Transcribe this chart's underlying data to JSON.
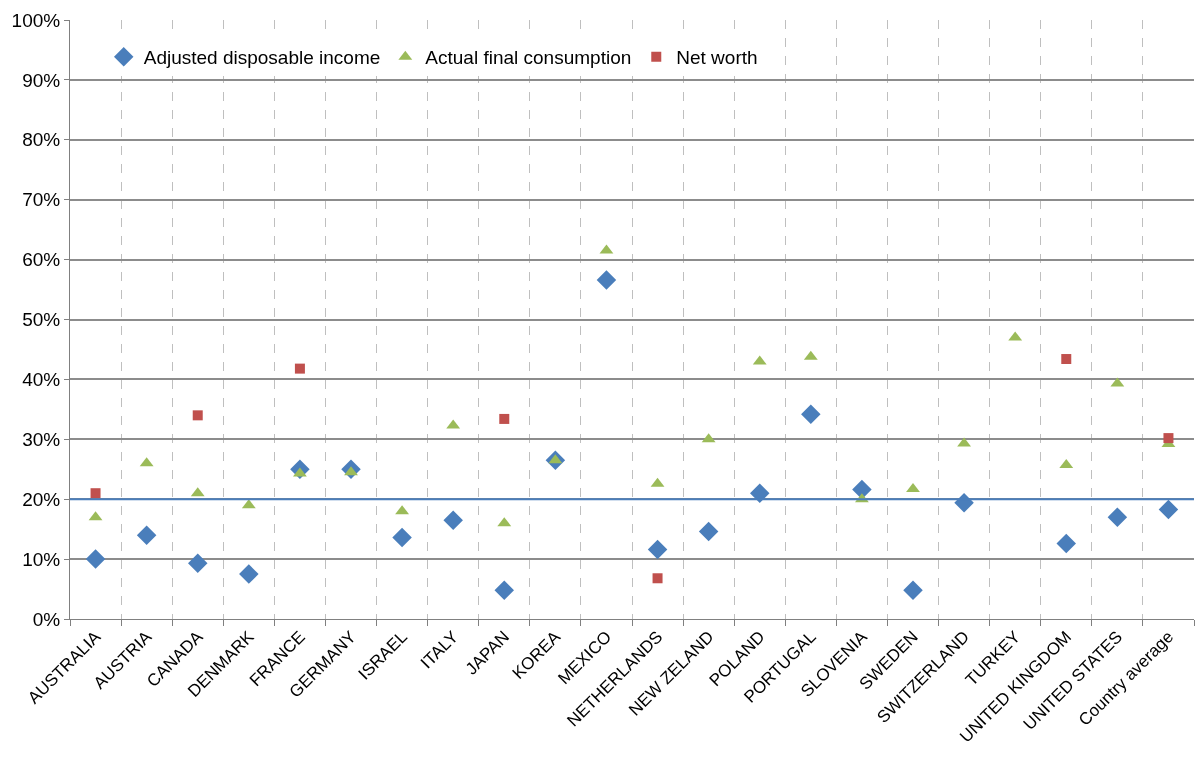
{
  "chart_data": {
    "type": "scatter",
    "categories": [
      "AUSTRALIA",
      "AUSTRIA",
      "CANADA",
      "DENMARK",
      "FRANCE",
      "GERMANY",
      "ISRAEL",
      "ITALY",
      "JAPAN",
      "KOREA",
      "MEXICO",
      "NETHERLANDS",
      "NEW ZELAND",
      "POLAND",
      "PORTUGAL",
      "SLOVENIA",
      "SWEDEN",
      "SWITZERLAND",
      "TURKEY",
      "UNITED KINGDOM",
      "UNITED STATES",
      "Country average"
    ],
    "series": [
      {
        "name": "Adjusted disposable income",
        "color": "#4a7ebb",
        "marker": "diamond",
        "values": [
          10,
          14,
          9.3,
          7.5,
          25,
          25,
          13.6,
          16.5,
          4.8,
          26.5,
          56.6,
          11.6,
          14.6,
          21,
          34.2,
          21.6,
          4.8,
          19.4,
          null,
          12.6,
          17,
          18.3
        ]
      },
      {
        "name": "Actual final consumption",
        "color": "#9bbb59",
        "marker": "triangle",
        "values": [
          17,
          26,
          21,
          19,
          24.3,
          24.5,
          18,
          32.3,
          16,
          26.5,
          61.5,
          22.6,
          30,
          43,
          43.8,
          20,
          21.7,
          29.3,
          47,
          25.7,
          39.3,
          29.2
        ]
      },
      {
        "name": "Net worth",
        "color": "#c0504d",
        "marker": "square",
        "values": [
          21,
          null,
          34,
          null,
          41.8,
          null,
          null,
          null,
          33.4,
          null,
          null,
          6.8,
          null,
          null,
          null,
          null,
          null,
          null,
          null,
          43.4,
          null,
          30.2
        ]
      }
    ],
    "ylim": [
      0,
      100
    ],
    "yticks": [
      {
        "value": 0,
        "label": "0%"
      },
      {
        "value": 10,
        "label": "10%"
      },
      {
        "value": 20,
        "label": "20%"
      },
      {
        "value": 30,
        "label": "30%"
      },
      {
        "value": 40,
        "label": "40%"
      },
      {
        "value": 50,
        "label": "50%"
      },
      {
        "value": 60,
        "label": "60%"
      },
      {
        "value": 70,
        "label": "70%"
      },
      {
        "value": 80,
        "label": "80%"
      },
      {
        "value": 90,
        "label": "90%"
      },
      {
        "value": 100,
        "label": "100%"
      }
    ],
    "ref_lines": [
      {
        "axis": "y",
        "value": 20,
        "color": "#4a7ebb"
      }
    ],
    "grid": true,
    "legend": "top left"
  }
}
